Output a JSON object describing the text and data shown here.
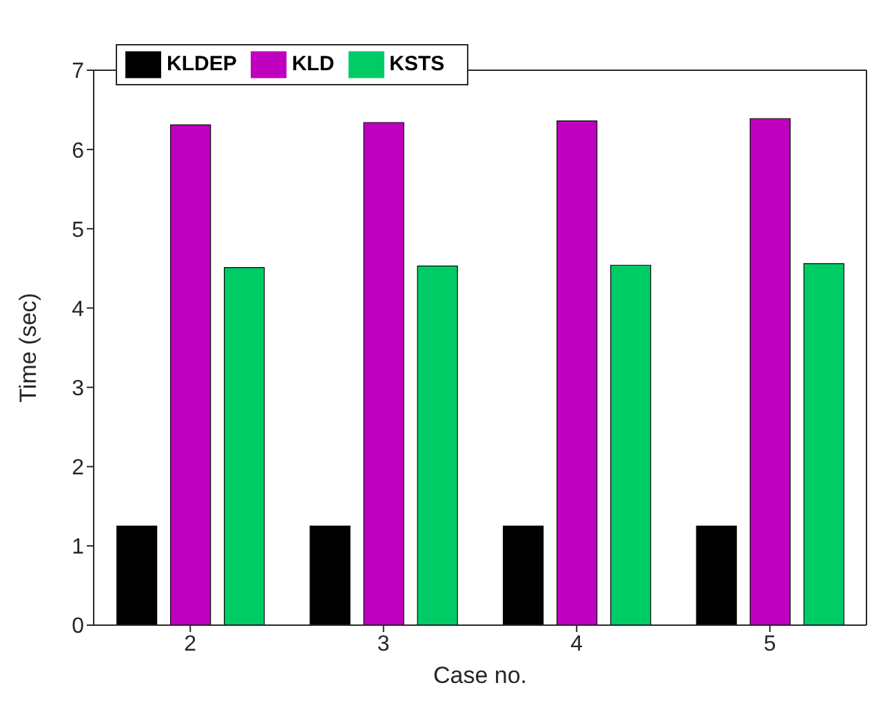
{
  "chart_data": {
    "type": "bar",
    "xlabel": "Case no.",
    "ylabel": "Time (sec)",
    "categories": [
      "2",
      "3",
      "4",
      "5"
    ],
    "series": [
      {
        "name": "KLDEP",
        "color": "#000000",
        "values": [
          1.25,
          1.25,
          1.25,
          1.25
        ]
      },
      {
        "name": "KLD",
        "color": "#bf00bf",
        "values": [
          6.31,
          6.34,
          6.36,
          6.39
        ]
      },
      {
        "name": "KSTS",
        "color": "#00cc66",
        "values": [
          4.51,
          4.53,
          4.54,
          4.56
        ]
      }
    ],
    "ylim": [
      0,
      7
    ],
    "yticks": [
      0,
      1,
      2,
      3,
      4,
      5,
      6,
      7
    ],
    "grid": false,
    "legend": "top left"
  }
}
